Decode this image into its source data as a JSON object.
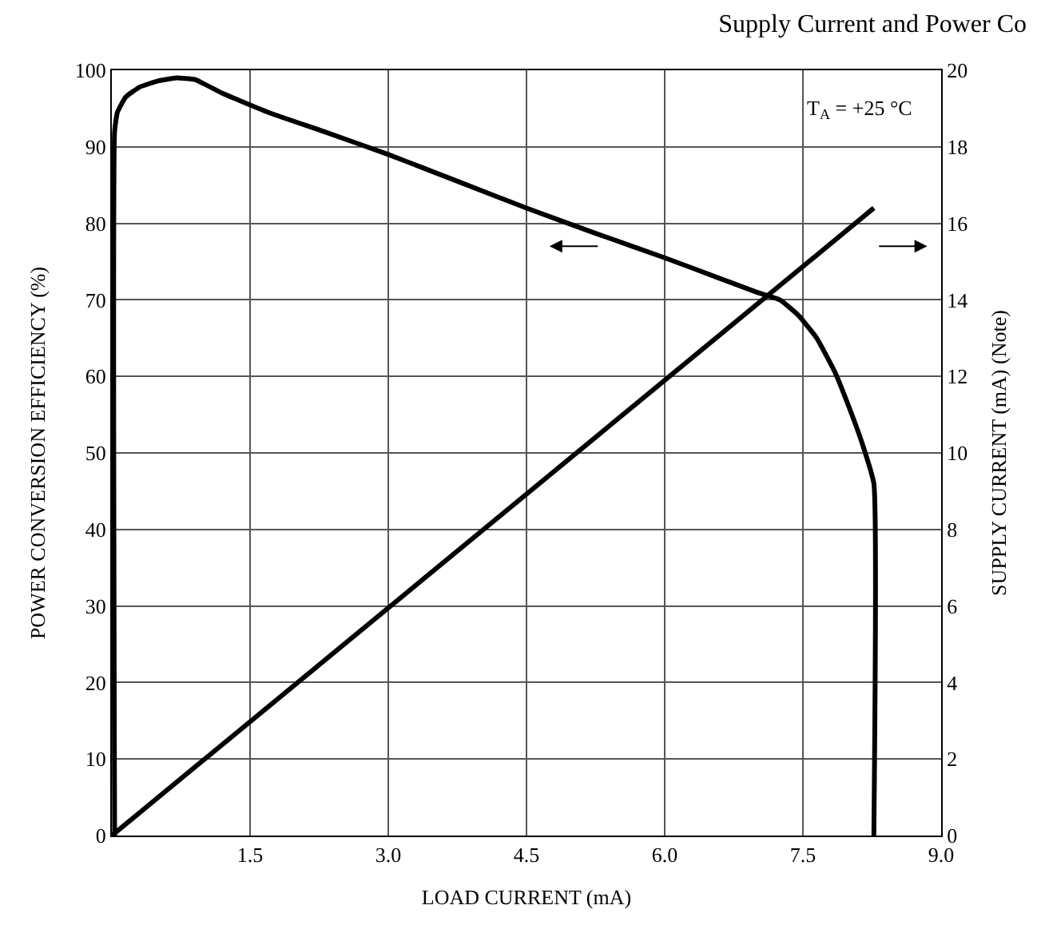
{
  "chart_data": {
    "type": "line",
    "title": "Supply Current and Power Co",
    "xlabel": "LOAD CURRENT (mA)",
    "ylabel": "POWER CONVERSION EFFICIENCY (%)",
    "y2label": "SUPPLY CURRENT (mA) (Note)",
    "annotations": [
      "T$_{A}$ = +25 °C"
    ],
    "series": [
      {
        "color": "#000000",
        "x": [
          0.03,
          0.03,
          0.06,
          0.15,
          0.3,
          0.5,
          0.7,
          0.9,
          1.2,
          1.7,
          2.3,
          3.0,
          3.75,
          4.5,
          5.25,
          6.0,
          6.6,
          7.0,
          7.25,
          7.45,
          7.65,
          7.85,
          8.0,
          8.15,
          8.27,
          8.27
        ],
        "values": [
          0,
          92,
          94.5,
          96.5,
          97.8,
          98.6,
          99,
          98.8,
          97,
          94.5,
          92,
          89,
          85.5,
          82,
          78.7,
          75.5,
          72.8,
          71,
          70,
          68,
          65,
          60.5,
          56,
          51,
          46,
          0
        ]
      },
      {
        "color": "#000000",
        "axis": "y2",
        "x": [
          0,
          8.27
        ],
        "values": [
          0,
          16.4
        ]
      }
    ],
    "xlim": [
      0,
      9.0
    ],
    "xticks": [
      1.5,
      {
        "value": 3,
        "label": "3.0"
      },
      4.5,
      {
        "value": 6,
        "label": "6.0"
      },
      7.5,
      {
        "value": 9,
        "label": "9.0"
      }
    ],
    "ylim": [
      0,
      100
    ],
    "yticks": [
      0,
      10,
      20,
      30,
      40,
      50,
      60,
      70,
      80,
      90,
      100
    ],
    "y2lim": [
      0,
      20
    ],
    "y2ticks": [
      0,
      2,
      4,
      6,
      8,
      10,
      12,
      14,
      16,
      18,
      20
    ],
    "grid": true,
    "marker": "none",
    "line_style": "solid"
  }
}
